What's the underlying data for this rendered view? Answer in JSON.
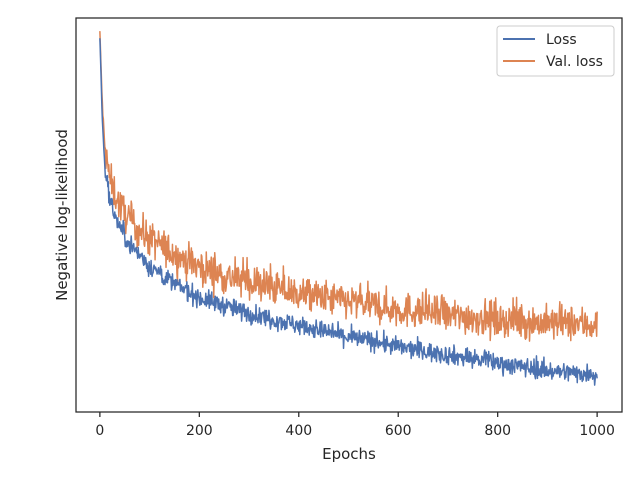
{
  "chart_data": {
    "type": "line",
    "xlabel": "Epochs",
    "ylabel": "Negative log-likelihood",
    "xlim": [
      -48,
      1050
    ],
    "ylim": [
      0,
      1
    ],
    "x_ticks": [
      0,
      200,
      400,
      600,
      800,
      1000
    ],
    "x_tick_labels": [
      "0",
      "200",
      "400",
      "600",
      "800",
      "1000"
    ],
    "y_ticks_visible": false,
    "grid": false,
    "legend_position": "top-right",
    "series": [
      {
        "name": "Loss",
        "color": "#4c72b0",
        "x": [
          0,
          5,
          10,
          20,
          30,
          40,
          50,
          75,
          100,
          150,
          200,
          250,
          300,
          350,
          400,
          450,
          500,
          550,
          600,
          650,
          700,
          750,
          800,
          850,
          900,
          950,
          1000
        ],
        "values": [
          0.95,
          0.74,
          0.62,
          0.54,
          0.5,
          0.47,
          0.445,
          0.405,
          0.37,
          0.325,
          0.29,
          0.27,
          0.25,
          0.235,
          0.22,
          0.205,
          0.19,
          0.18,
          0.165,
          0.155,
          0.145,
          0.135,
          0.125,
          0.115,
          0.105,
          0.1,
          0.095
        ],
        "noise": 0.012
      },
      {
        "name": "Val. loss",
        "color": "#dd8452",
        "x": [
          0,
          5,
          10,
          20,
          30,
          40,
          50,
          75,
          100,
          150,
          200,
          250,
          300,
          350,
          400,
          450,
          500,
          550,
          600,
          650,
          700,
          750,
          800,
          850,
          900,
          950,
          1000
        ],
        "values": [
          0.96,
          0.78,
          0.67,
          0.59,
          0.555,
          0.525,
          0.505,
          0.465,
          0.44,
          0.4,
          0.37,
          0.345,
          0.33,
          0.315,
          0.3,
          0.29,
          0.28,
          0.27,
          0.26,
          0.255,
          0.245,
          0.24,
          0.235,
          0.23,
          0.225,
          0.225,
          0.22
        ],
        "noise": 0.022
      }
    ]
  }
}
